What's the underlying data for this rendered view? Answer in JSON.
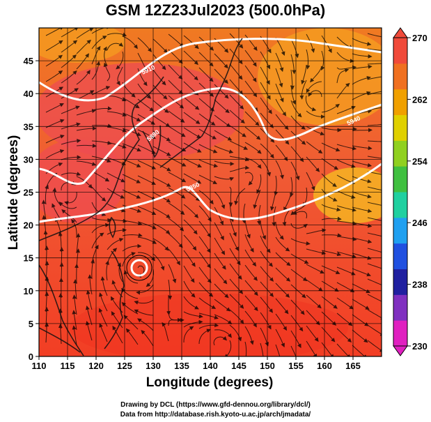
{
  "title": "GSM 12Z23Jul2023 (500.0hPa)",
  "xlabel": "Longitude (degrees)",
  "ylabel": "Latitude  (degrees)",
  "credits": [
    "Drawing by DCL (https://www.gfd-dennou.org/library/dcl/)",
    "Data from http://database.rish.kyoto-u.ac.jp/arch/jmadata/"
  ],
  "map": {
    "lon_range": [
      110,
      170
    ],
    "lat_range": [
      0,
      50
    ],
    "lon_ticks": [
      110,
      115,
      120,
      125,
      130,
      135,
      140,
      145,
      150,
      155,
      160,
      165
    ],
    "lat_ticks": [
      0,
      5,
      10,
      15,
      20,
      25,
      30,
      35,
      40,
      45
    ],
    "contour_labels": [
      "5850",
      "5880",
      "5910",
      "5940"
    ]
  },
  "colorbar": {
    "min": 230,
    "max": 270,
    "tick_labels": [
      "270",
      "262",
      "254",
      "246",
      "238",
      "230"
    ],
    "colors": [
      "#e020c0",
      "#8030c0",
      "#2020a0",
      "#2050e0",
      "#20a0f0",
      "#20d0a0",
      "#40c040",
      "#90d020",
      "#e0d000",
      "#f0a000",
      "#f07020",
      "#f04a3a"
    ]
  }
}
